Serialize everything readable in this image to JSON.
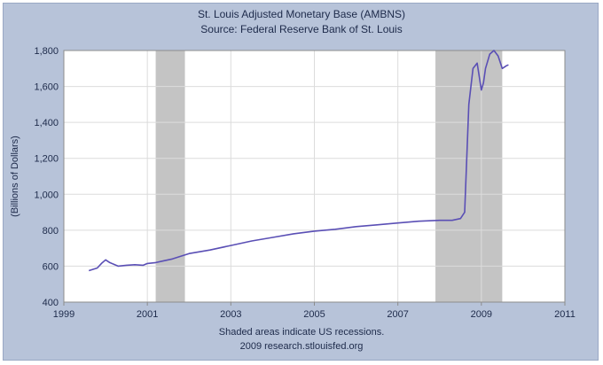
{
  "chart_data": {
    "type": "line",
    "title": "St. Louis Adjusted Monetary Base (AMBNS)",
    "subtitle": "Source: Federal Reserve Bank of St. Louis",
    "xlabel": "",
    "ylabel": "(Billions of Dollars)",
    "xlim": [
      1999,
      2011
    ],
    "ylim": [
      400,
      1800
    ],
    "x_ticks": [
      1999,
      2001,
      2003,
      2005,
      2007,
      2009,
      2011
    ],
    "x_tick_labels": [
      "1999",
      "2001",
      "2003",
      "2005",
      "2007",
      "2009",
      "2011"
    ],
    "y_ticks": [
      400,
      600,
      800,
      1000,
      1200,
      1400,
      1600,
      1800
    ],
    "y_tick_labels": [
      "400",
      "600",
      "800",
      "1,000",
      "1,200",
      "1,400",
      "1,600",
      "1,800"
    ],
    "grid": true,
    "recessions": [
      {
        "start": 2001.2,
        "end": 2001.9
      },
      {
        "start": 2007.9,
        "end": 2009.5
      }
    ],
    "series": [
      {
        "color": "#5a4fb5",
        "x": [
          1999.6,
          1999.8,
          1999.9,
          2000.0,
          2000.1,
          2000.3,
          2000.5,
          2000.7,
          2000.9,
          2001.0,
          2001.2,
          2001.4,
          2001.6,
          2001.8,
          2002.0,
          2002.5,
          2003.0,
          2003.5,
          2004.0,
          2004.5,
          2005.0,
          2005.5,
          2006.0,
          2006.5,
          2007.0,
          2007.5,
          2008.0,
          2008.3,
          2008.5,
          2008.6,
          2008.7,
          2008.8,
          2008.9,
          2009.0,
          2009.05,
          2009.1,
          2009.2,
          2009.3,
          2009.4,
          2009.5,
          2009.6,
          2009.65
        ],
        "y": [
          575,
          590,
          615,
          635,
          620,
          600,
          605,
          608,
          605,
          615,
          620,
          630,
          640,
          655,
          670,
          690,
          715,
          740,
          760,
          780,
          795,
          805,
          820,
          830,
          840,
          850,
          855,
          855,
          865,
          900,
          1500,
          1700,
          1730,
          1580,
          1620,
          1700,
          1780,
          1800,
          1770,
          1700,
          1715,
          1720
        ]
      }
    ],
    "annotations": [
      "Shaded areas indicate US recessions.",
      "2009 research.stlouisfed.org"
    ]
  },
  "colors": {
    "background": "#b7c3d9",
    "plot": "#ffffff",
    "recession": "#c4c4c4",
    "grid": "#dcdcdc",
    "line": "#5a4fb5",
    "text": "#1d2a4a"
  }
}
